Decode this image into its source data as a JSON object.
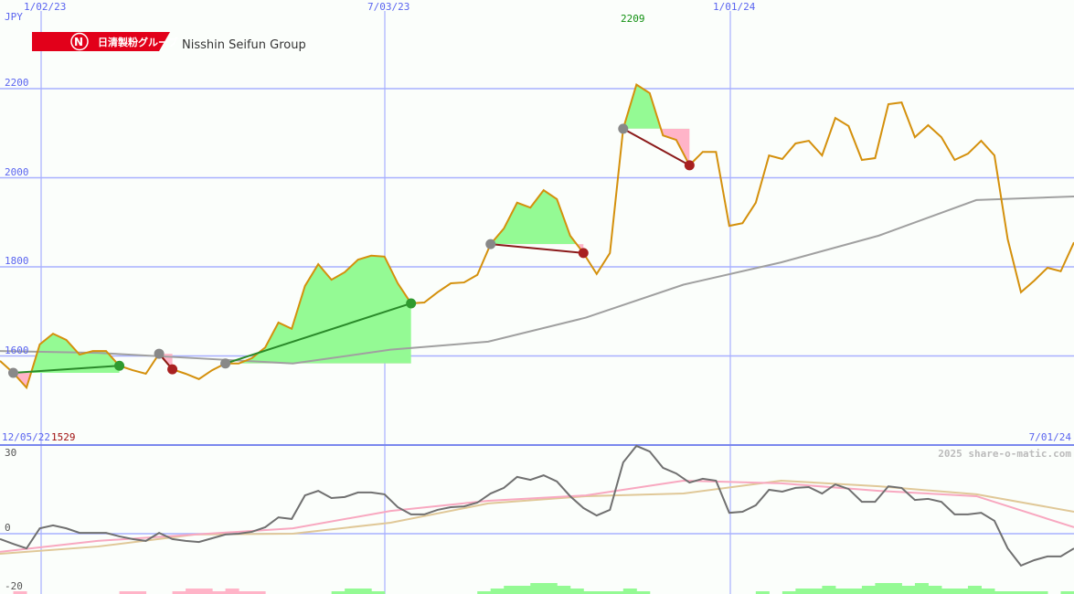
{
  "header": {
    "currency": "JPY",
    "company_name": "Nisshin Seifun Group",
    "logo_text": "日清製粉グループ",
    "credit": "2025 share-o-matic.com"
  },
  "chart_data": {
    "type": "line",
    "x_start_label": "12/05/22",
    "x_end_label": "7/01/24",
    "x_tick_labels": [
      "1/02/23",
      "7/03/23",
      "1/01/24"
    ],
    "interval": "weekly",
    "y_ticks": [
      2200,
      2000,
      1800,
      1600
    ],
    "y_unit": "JPY",
    "high_label": "2209",
    "low_label": "1529",
    "grid": true,
    "colors": {
      "price": "#d4900c",
      "moving_average": "#a0a0a0",
      "grid": "#a8b0ff",
      "separator": "#7b88ee",
      "win_fill": "#94fa94",
      "loss_fill": "#ffb4c8",
      "win_line": "#2a8a2a",
      "loss_line": "#8b1a1a",
      "entry_marker": "#888888",
      "win_marker": "#2f9a2f",
      "loss_marker": "#a82020",
      "high": "#109010",
      "low": "#a01010"
    },
    "price": [
      1589,
      1562,
      1529,
      1626,
      1650,
      1636,
      1603,
      1611,
      1611,
      1578,
      1568,
      1560,
      1605,
      1570,
      1560,
      1548,
      1568,
      1583,
      1583,
      1595,
      1619,
      1675,
      1661,
      1757,
      1806,
      1771,
      1788,
      1816,
      1825,
      1823,
      1763,
      1718,
      1720,
      1743,
      1763,
      1765,
      1782,
      1851,
      1886,
      1944,
      1933,
      1972,
      1952,
      1870,
      1831,
      1784,
      1831,
      2110,
      2209,
      2190,
      2095,
      2085,
      2028,
      2058,
      2058,
      1892,
      1898,
      1944,
      2050,
      2042,
      2077,
      2083,
      2050,
      2134,
      2116,
      2040,
      2044,
      2165,
      2169,
      2091,
      2118,
      2091,
      2040,
      2054,
      2083,
      2050,
      1862,
      1743,
      1769,
      1798,
      1790,
      1855
    ],
    "moving_average": [
      1611,
      1607,
      1595,
      1583,
      1614,
      1632,
      1686,
      1760,
      1810,
      1870,
      1950,
      1958
    ],
    "trades": [
      {
        "entry": "12/19/22",
        "exit": "2/13/23",
        "result": "win"
      },
      {
        "entry": "3/06/23",
        "exit": "3/13/23",
        "result": "loss"
      },
      {
        "entry": "4/10/23",
        "exit": "7/17/23",
        "result": "win"
      },
      {
        "entry": "8/28/23",
        "exit": "10/16/23",
        "result": "loss"
      },
      {
        "entry": "11/06/23",
        "exit": "12/11/23",
        "result": "loss"
      }
    ],
    "oscillator": {
      "y_ticks": [
        30,
        0,
        -20
      ],
      "colors": {
        "momentum": "#707070",
        "signal_fast": "#f8a8c0",
        "signal_slow": "#e0c898",
        "zero": "#a8b0ff"
      },
      "momentum": [
        -2.0,
        -3.8,
        -5.5,
        2.0,
        3.1,
        2.0,
        0.3,
        0.3,
        0.3,
        -1.0,
        -2.0,
        -2.7,
        0.3,
        -2.0,
        -2.7,
        -3.1,
        -1.7,
        -0.3,
        0,
        0.7,
        2.4,
        6.1,
        5.5,
        14.3,
        16.0,
        13.3,
        13.7,
        15.4,
        15.4,
        14.7,
        9.9,
        7.2,
        7.2,
        8.9,
        9.9,
        10.2,
        11.6,
        15.0,
        17.1,
        21.2,
        20.1,
        21.8,
        19.5,
        14.0,
        9.6,
        6.8,
        8.9,
        26.6,
        32.8,
        30.7,
        24.6,
        22.5,
        19.1,
        20.5,
        19.8,
        7.8,
        8.2,
        10.6,
        16.4,
        15.7,
        17.1,
        17.4,
        15.0,
        18.4,
        16.7,
        11.9,
        11.9,
        17.7,
        17.1,
        12.6,
        13.0,
        11.9,
        7.2,
        7.2,
        7.8,
        4.8,
        -5.5,
        -11.9,
        -9.9,
        -8.5,
        -8.5,
        -5.5
      ],
      "signal_fast": [
        -6.8,
        -2.7,
        -0.3,
        2.0,
        8.5,
        12.3,
        14.3,
        19.8,
        18.8,
        16.0,
        14.0,
        2.4
      ],
      "signal_slow": [
        -7.5,
        -4.8,
        -0.3,
        0,
        4.1,
        11.3,
        14.0,
        15.0,
        19.8,
        17.7,
        14.7,
        8.2
      ],
      "histogram": [
        0,
        -1,
        0,
        0,
        0,
        0,
        0,
        0,
        0,
        -1,
        -1,
        0,
        0,
        -1,
        -2,
        -2,
        -1,
        -2,
        -1,
        -1,
        0,
        0,
        0,
        0,
        0,
        1,
        2,
        2,
        1,
        0,
        0,
        0,
        0,
        0,
        0,
        0,
        1,
        2,
        3,
        3,
        4,
        4,
        3,
        2,
        1,
        1,
        1,
        2,
        1,
        0,
        0,
        0,
        0,
        0,
        0,
        0,
        0,
        1,
        0,
        1,
        2,
        2,
        3,
        2,
        2,
        3,
        4,
        4,
        3,
        4,
        3,
        2,
        2,
        3,
        2,
        1,
        1,
        1,
        1,
        0,
        1,
        0
      ]
    }
  }
}
